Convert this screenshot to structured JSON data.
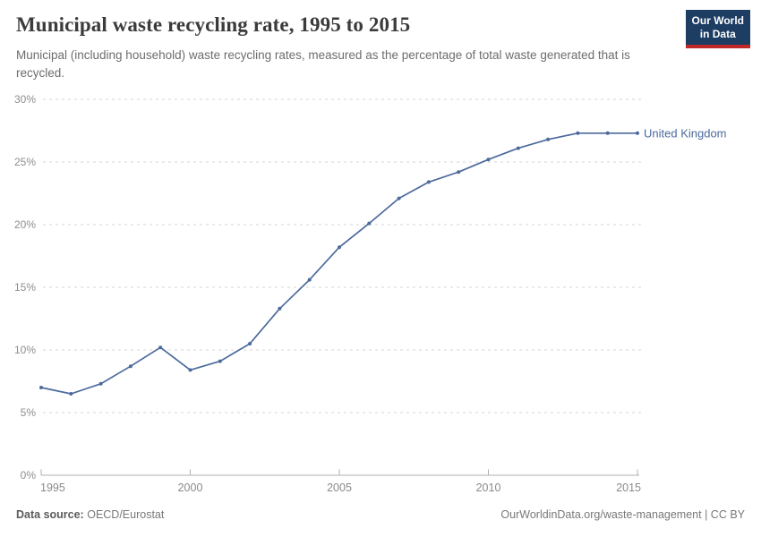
{
  "header": {
    "title": "Municipal waste recycling rate, 1995 to 2015",
    "subtitle": "Municipal (including household) waste recycling rates, measured as the percentage of total waste generated that is recycled.",
    "logo": {
      "line1": "Our World",
      "line2": "in Data",
      "bg_color": "#1d3d63",
      "accent_color": "#c0282a"
    }
  },
  "chart_data": {
    "type": "line",
    "title": "Municipal waste recycling rate, 1995 to 2015",
    "x": [
      1995,
      1996,
      1997,
      1998,
      1999,
      2000,
      2001,
      2002,
      2003,
      2004,
      2005,
      2006,
      2007,
      2008,
      2009,
      2010,
      2011,
      2012,
      2013,
      2014,
      2015
    ],
    "series": [
      {
        "name": "United Kingdom",
        "color": "#4C6A9C",
        "values": [
          7.0,
          6.5,
          7.3,
          8.7,
          10.2,
          8.4,
          9.1,
          10.5,
          13.3,
          15.6,
          18.2,
          20.1,
          22.1,
          23.4,
          24.2,
          25.2,
          26.1,
          26.8,
          27.3,
          27.3,
          27.3
        ]
      }
    ],
    "xlim": [
      1995,
      2015
    ],
    "ylim": [
      0,
      30
    ],
    "x_ticks": [
      1995,
      2000,
      2005,
      2010,
      2015
    ],
    "y_ticks": [
      0,
      5,
      10,
      15,
      20,
      25,
      30
    ],
    "y_tick_suffix": "%",
    "xlabel": "",
    "ylabel": "",
    "grid": "horizontal-dashed",
    "legend_position": "line-end-label"
  },
  "footer": {
    "source_label": "Data source:",
    "source_value": "OECD/Eurostat",
    "credit": "OurWorldinData.org/waste-management | CC BY"
  }
}
